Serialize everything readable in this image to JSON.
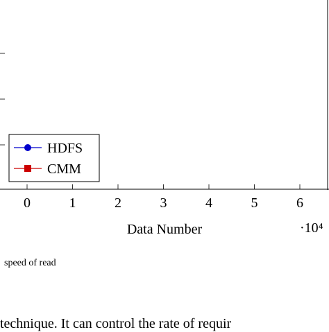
{
  "chart_data": {
    "type": "line",
    "title": "",
    "xlabel": "Data Number",
    "ylabel": "",
    "x_multiplier": "·10⁴",
    "xlim": [
      -0.4,
      6.6
    ],
    "xticks": [
      0,
      1,
      2,
      3,
      4,
      5,
      6
    ],
    "xtick_labels": [
      "0",
      "1",
      "2",
      "3",
      "4",
      "5",
      "6"
    ],
    "legend_position": "bottom-left",
    "series": [
      {
        "name": "HDFS",
        "color": "#0000cc",
        "marker": "circle",
        "x": [],
        "y": []
      },
      {
        "name": "CMM",
        "color": "#cc0000",
        "marker": "square",
        "x": [],
        "y": []
      }
    ]
  },
  "caption_text": "speed of read",
  "body_text": "technique. It can control the rate of requir"
}
